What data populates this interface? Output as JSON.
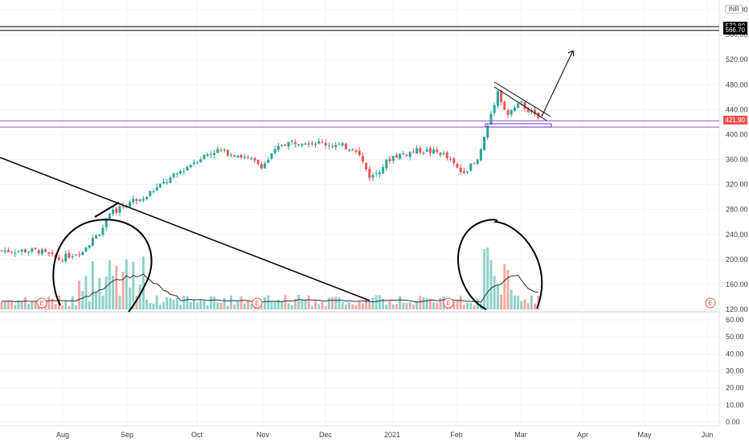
{
  "chart_data": [
    {
      "type": "candlestick",
      "currency": "INR",
      "x_ticks": [
        "Aug",
        "Sep",
        "Oct",
        "Nov",
        "Dec",
        "2021",
        "Feb",
        "Mar",
        "Apr",
        "May",
        "Jun"
      ],
      "y_ticks": [
        "120.00",
        "160.00",
        "200.00",
        "240.00",
        "280.00",
        "320.00",
        "360.00",
        "400.00",
        "440.00",
        "480.00",
        "520.00",
        "560.00",
        "600.00"
      ],
      "ylim": [
        120,
        600
      ],
      "price_tags": [
        {
          "label": "572.80",
          "value": 572.8,
          "color": "#000000"
        },
        {
          "label": "566.70",
          "value": 566.7,
          "color": "#000000"
        },
        {
          "label": "421.90",
          "value": 421.9,
          "color": "#ef5350"
        }
      ],
      "horizontal_lines": [
        572.8,
        566.7,
        421.9,
        412
      ],
      "earnings_marker": "E",
      "ohlc": {
        "description": "daily candles Jul 2020 - Mar 2021",
        "close_path": [
          {
            "date": "2020-07-20",
            "close": 214
          },
          {
            "date": "2020-07-30",
            "close": 200
          },
          {
            "date": "2020-08-10",
            "close": 214
          },
          {
            "date": "2020-08-18",
            "close": 240
          },
          {
            "date": "2020-08-25",
            "close": 275
          },
          {
            "date": "2020-09-01",
            "close": 290
          },
          {
            "date": "2020-09-10",
            "close": 305
          },
          {
            "date": "2020-09-20",
            "close": 330
          },
          {
            "date": "2020-10-01",
            "close": 360
          },
          {
            "date": "2020-10-10",
            "close": 375
          },
          {
            "date": "2020-10-20",
            "close": 368
          },
          {
            "date": "2020-11-01",
            "close": 350
          },
          {
            "date": "2020-11-10",
            "close": 385
          },
          {
            "date": "2020-11-20",
            "close": 390
          },
          {
            "date": "2020-12-01",
            "close": 385
          },
          {
            "date": "2020-12-15",
            "close": 378
          },
          {
            "date": "2020-12-22",
            "close": 330
          },
          {
            "date": "2021-01-01",
            "close": 365
          },
          {
            "date": "2021-01-15",
            "close": 375
          },
          {
            "date": "2021-01-25",
            "close": 370
          },
          {
            "date": "2021-02-03",
            "close": 340
          },
          {
            "date": "2021-02-10",
            "close": 355
          },
          {
            "date": "2021-02-15",
            "close": 420
          },
          {
            "date": "2021-02-19",
            "close": 470
          },
          {
            "date": "2021-02-23",
            "close": 430
          },
          {
            "date": "2021-03-01",
            "close": 450
          },
          {
            "date": "2021-03-08",
            "close": 430
          },
          {
            "date": "2021-03-12",
            "close": 422
          }
        ]
      }
    },
    {
      "type": "bar",
      "name": "volume",
      "ylim": [
        0,
        60
      ],
      "y_ticks": [
        "0.00",
        "10.00",
        "20.00",
        "30.00",
        "40.00",
        "50.00",
        "60.00"
      ]
    }
  ]
}
